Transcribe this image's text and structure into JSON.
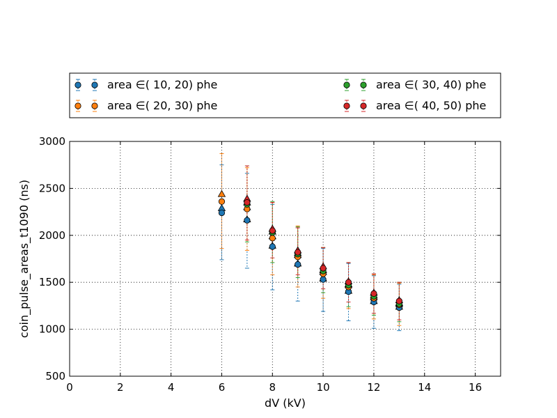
{
  "chart_data": {
    "type": "scatter",
    "title": "",
    "xlabel": "dV (kV)",
    "ylabel": "coin_pulse_areas_t1090 (ns)",
    "xlim": [
      0,
      17
    ],
    "ylim": [
      500,
      3000
    ],
    "xticks": [
      "0",
      "2",
      "4",
      "6",
      "8",
      "10",
      "12",
      "14",
      "16"
    ],
    "yticks": [
      "500",
      "1000",
      "1500",
      "2000",
      "2500",
      "3000"
    ],
    "grid": true,
    "legend_position": "above plot, two columns",
    "x": [
      6,
      7,
      8,
      9,
      10,
      11,
      12,
      13
    ],
    "series": [
      {
        "name": "area ∈( 10,  20) phe",
        "color": "#1f77b4",
        "circle": [
          2240,
          2160,
          1880,
          1690,
          1530,
          1400,
          1290,
          1230
        ],
        "triangle": [
          2290,
          2170,
          1890,
          1700,
          1540,
          1410,
          1300,
          1240
        ],
        "err_lo": [
          1740,
          1650,
          1420,
          1300,
          1190,
          1090,
          1010,
          985
        ],
        "err_hi": [
          2750,
          2660,
          2330,
          2080,
          1860,
          1700,
          1570,
          1480
        ]
      },
      {
        "name": "area ∈( 20,  30) phe",
        "color": "#ff7f0e",
        "circle": [
          2360,
          2280,
          1970,
          1770,
          1590,
          1450,
          1330,
          1260
        ],
        "triangle": [
          2440,
          2300,
          1990,
          1790,
          1610,
          1470,
          1340,
          1270
        ],
        "err_lo": [
          1860,
          1840,
          1580,
          1450,
          1330,
          1220,
          1110,
          1040
        ],
        "err_hi": [
          2870,
          2720,
          2350,
          2100,
          1870,
          1710,
          1580,
          1490
        ]
      },
      {
        "name": "area ∈( 30,  40) phe",
        "color": "#2ca02c",
        "circle": [
          null,
          2330,
          2030,
          1800,
          1620,
          1470,
          1350,
          1270
        ],
        "triangle": [
          null,
          2350,
          2040,
          1810,
          1630,
          1480,
          1360,
          1280
        ],
        "err_lo": [
          null,
          1930,
          1710,
          1550,
          1390,
          1240,
          1150,
          1080
        ],
        "err_hi": [
          null,
          2740,
          2360,
          2090,
          1870,
          1710,
          1590,
          1500
        ]
      },
      {
        "name": "area ∈( 40,  50) phe",
        "color": "#d62728",
        "circle": [
          null,
          2350,
          2050,
          1820,
          1650,
          1500,
          1380,
          1300
        ],
        "triangle": [
          null,
          2390,
          2070,
          1840,
          1670,
          1510,
          1390,
          1310
        ],
        "err_lo": [
          null,
          1950,
          1760,
          1580,
          1430,
          1290,
          1170,
          1100
        ],
        "err_hi": [
          null,
          2740,
          2350,
          2080,
          1870,
          1710,
          1590,
          1500
        ]
      }
    ]
  }
}
